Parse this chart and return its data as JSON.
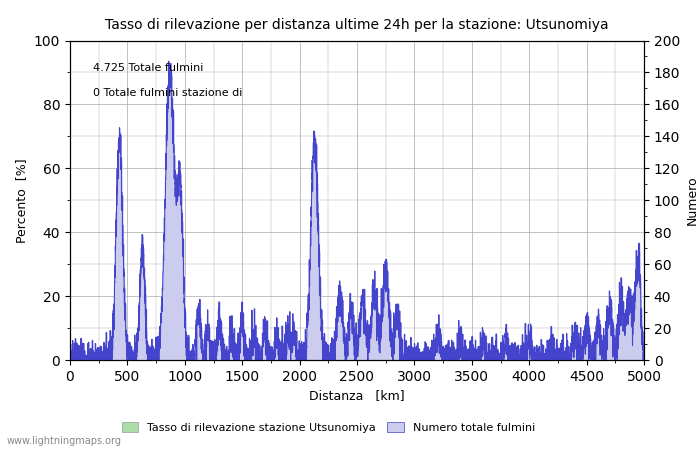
{
  "title": "Tasso di rilevazione per distanza ultime 24h per la stazione: Utsunomiya",
  "xlabel": "Distanza   [km]",
  "ylabel_left": "Percento  [%]",
  "ylabel_right": "Numero",
  "annotation_line1": "4.725 Totale fulmini",
  "annotation_line2": "0 Totale fulmini stazione di",
  "legend_label1": "Tasso di rilevazione stazione Utsunomiya",
  "legend_label2": "Numero totale fulmini",
  "watermark": "www.lightningmaps.org",
  "xlim": [
    0,
    5000
  ],
  "ylim_left": [
    0,
    100
  ],
  "ylim_right": [
    0,
    200
  ],
  "xticks": [
    0,
    500,
    1000,
    1500,
    2000,
    2500,
    3000,
    3500,
    4000,
    4500,
    5000
  ],
  "yticks_left": [
    0,
    20,
    40,
    60,
    80,
    100
  ],
  "yticks_right": [
    0,
    20,
    40,
    60,
    80,
    100,
    120,
    140,
    160,
    180,
    200
  ],
  "line_color": "#4444cc",
  "fill_color": "#ccccee",
  "green_fill_color": "#aaddaa",
  "grid_color": "#aaaaaa",
  "background_color": "#ffffff"
}
